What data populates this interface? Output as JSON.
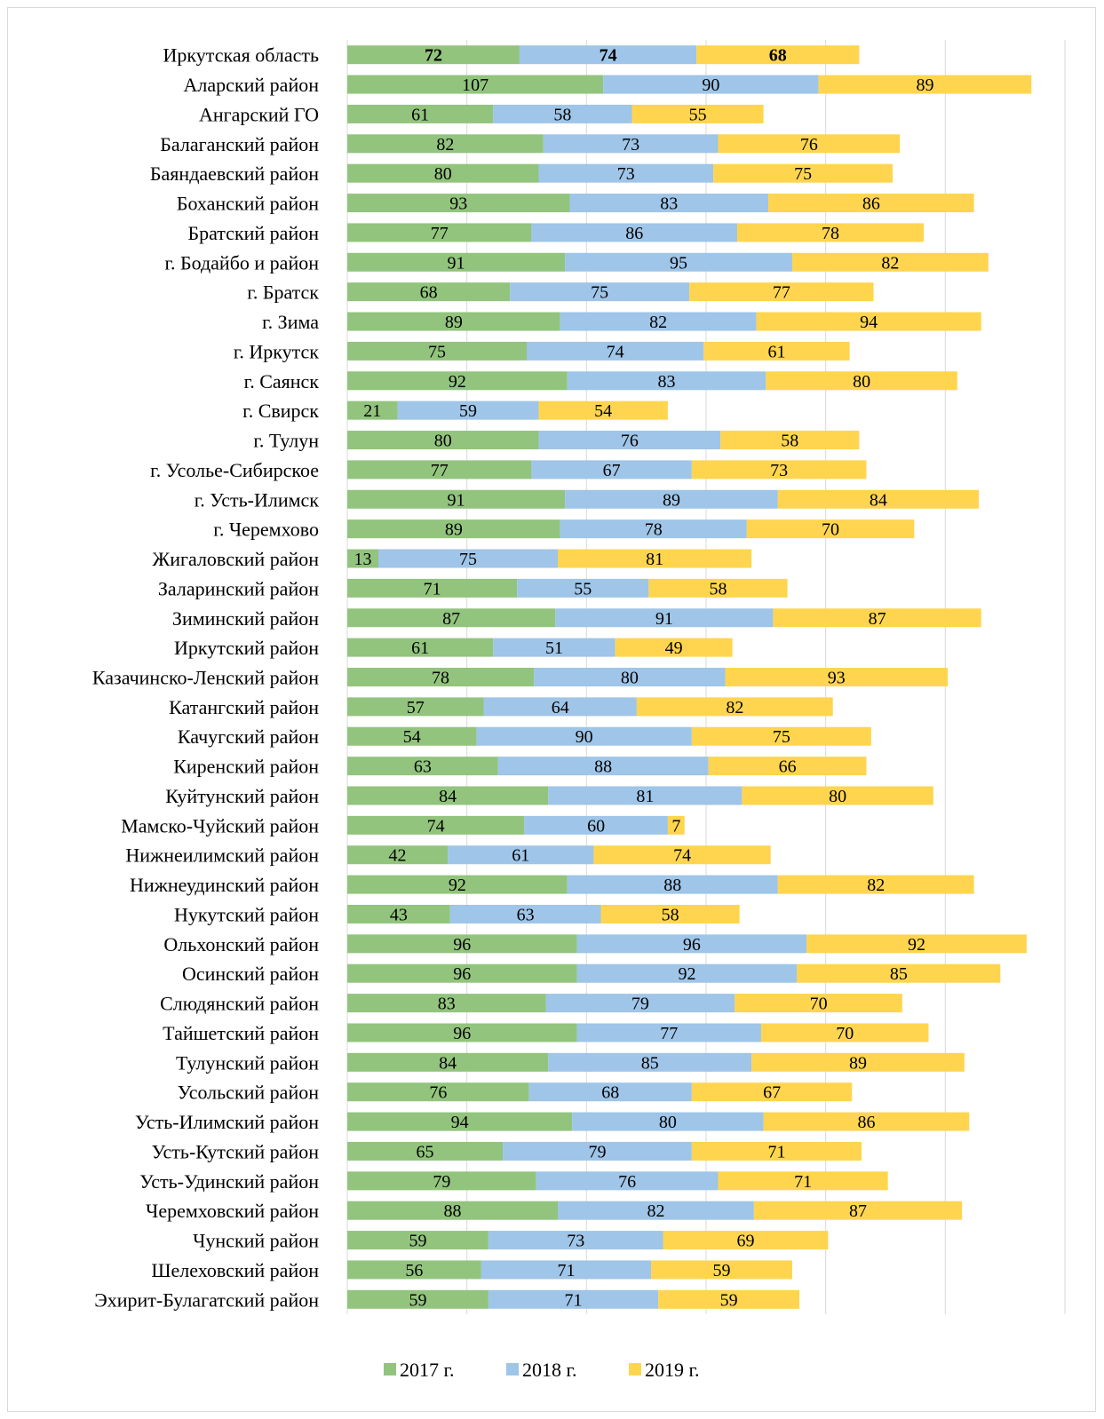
{
  "chart_data": {
    "type": "bar",
    "orientation": "horizontal",
    "stacked": true,
    "title": "",
    "xlabel": "",
    "ylabel": "",
    "xlim": [
      0,
      300
    ],
    "grid": "vertical",
    "legend_position": "bottom",
    "categories": [
      "Иркутская область",
      "Аларский район",
      "Ангарский ГО",
      "Балаганский район",
      "Баяндаевский район",
      "Боханский район",
      "Братский район",
      "г. Бодайбо и район",
      "г. Братск",
      "г. Зима",
      "г. Иркутск",
      "г. Саянск",
      "г. Свирск",
      "г. Тулун",
      "г. Усолье-Сибирское",
      "г. Усть-Илимск",
      "г. Черемхово",
      "Жигаловский район",
      "Заларинский район",
      "Зиминский район",
      "Иркутский район",
      "Казачинско-Ленский район",
      "Катангский район",
      "Качугский район",
      "Киренский район",
      "Куйтунский район",
      "Мамско-Чуйский район",
      "Нижнеилимский район",
      "Нижнеудинский район",
      "Нукутский район",
      "Ольхонский район",
      "Осинский район",
      "Слюдянский район",
      "Тайшетский район",
      "Тулунский район",
      "Усольский район",
      "Усть-Илимский район",
      "Усть-Кутский район",
      "Усть-Удинский район",
      "Черемховский район",
      "Чунский район",
      "Шелеховский район",
      "Эхирит-Булагатский район"
    ],
    "series": [
      {
        "name": "2017 г.",
        "color": "#92c47d",
        "values": [
          72,
          107,
          61,
          82,
          80,
          93,
          77,
          91,
          68,
          89,
          75,
          92,
          21,
          80,
          77,
          91,
          89,
          13,
          71,
          87,
          61,
          78,
          57,
          54,
          63,
          84,
          74,
          42,
          92,
          43,
          96,
          96,
          83,
          96,
          84,
          76,
          94,
          65,
          79,
          88,
          59,
          56,
          59
        ]
      },
      {
        "name": "2018 г.",
        "color": "#9fc5e8",
        "values": [
          74,
          90,
          58,
          73,
          73,
          83,
          86,
          95,
          75,
          82,
          74,
          83,
          59,
          76,
          67,
          89,
          78,
          75,
          55,
          91,
          51,
          80,
          64,
          90,
          88,
          81,
          60,
          61,
          88,
          63,
          96,
          92,
          79,
          77,
          85,
          68,
          80,
          79,
          76,
          82,
          73,
          71,
          71
        ]
      },
      {
        "name": "2019 г.",
        "color": "#ffd54f",
        "values": [
          68,
          89,
          55,
          76,
          75,
          86,
          78,
          82,
          77,
          94,
          61,
          80,
          54,
          58,
          73,
          84,
          70,
          81,
          58,
          87,
          49,
          93,
          82,
          75,
          66,
          80,
          7,
          74,
          82,
          58,
          92,
          85,
          70,
          70,
          89,
          67,
          86,
          71,
          71,
          87,
          69,
          59,
          59
        ]
      }
    ],
    "bold_value_categories": [
      "Иркутская область"
    ]
  }
}
